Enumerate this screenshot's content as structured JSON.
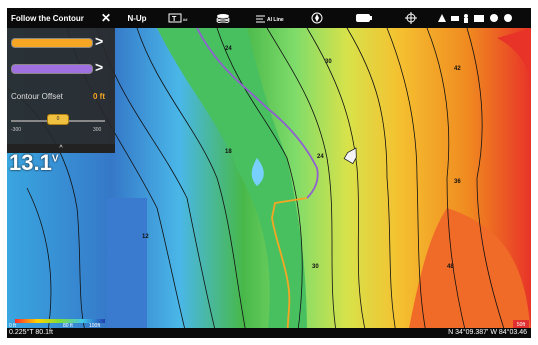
{
  "topbar": {
    "title": "Follow the Contour",
    "close_glyph": "✕",
    "orientation": "N-Up",
    "icons": [
      "text-overlay-icon",
      "layers-icon",
      "ai-line-icon",
      "compass-icon",
      "battery-icon",
      "gps-icon",
      "network-icon",
      "boat-icon",
      "person-icon",
      "chart-icon",
      "settings-icon",
      "power-icon"
    ],
    "text_overlay_small": "##",
    "ai_line_label": "AI Line"
  },
  "panel": {
    "line1_color": "#f5a623",
    "line2_color": "#a070e0",
    "arrow": ">",
    "offset_label": "Contour Offset",
    "offset_value": "0 ft",
    "slider_value": "0",
    "slider_min": "-300",
    "slider_max": "300",
    "collapse_glyph": "^"
  },
  "voltage": {
    "value": "13.1",
    "unit": "V"
  },
  "depth_scale": {
    "min": "0 ft",
    "mid": "80 ft",
    "max": "100ft"
  },
  "zoom": {
    "label": "50ft"
  },
  "status": {
    "heading": "0.225°T  80.1ft",
    "coords": "N 34°09.387'  W 84°03.46"
  },
  "contour_labels": [
    "12",
    "18",
    "24",
    "30",
    "36",
    "42",
    "48",
    "54",
    "60"
  ],
  "colors": {
    "deep": "#2a3fbf",
    "shallow_red": "#e8302a",
    "track_orange": "#f5a623",
    "route_purple": "#9060d0"
  }
}
